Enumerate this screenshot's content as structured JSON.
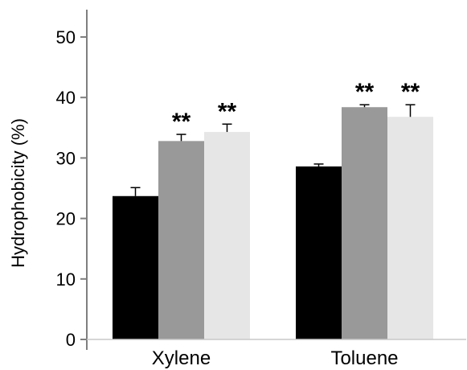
{
  "chart_data": {
    "type": "bar",
    "title": "",
    "xlabel": "",
    "ylabel": "Hydrophobicity (%)",
    "ylim": [
      0,
      55
    ],
    "yticks": [
      0,
      10,
      20,
      30,
      40,
      50
    ],
    "yticks_text": [
      "0",
      "10",
      "20",
      "30",
      "40",
      "50"
    ],
    "grid": false,
    "legend": "none",
    "categories": [
      "Xylene",
      "Toluene"
    ],
    "series": [
      {
        "color": "#000000",
        "values": [
          23.7,
          28.6
        ],
        "errors": [
          1.4,
          0.4
        ],
        "significance": [
          "",
          ""
        ]
      },
      {
        "color": "#999999",
        "values": [
          32.8,
          38.4
        ],
        "errors": [
          1.1,
          0.4
        ],
        "significance": [
          "**",
          "**"
        ]
      },
      {
        "color": "#e6e6e6",
        "values": [
          34.3,
          36.8
        ],
        "errors": [
          1.3,
          2.0
        ],
        "significance": [
          "**",
          "**"
        ]
      }
    ]
  }
}
